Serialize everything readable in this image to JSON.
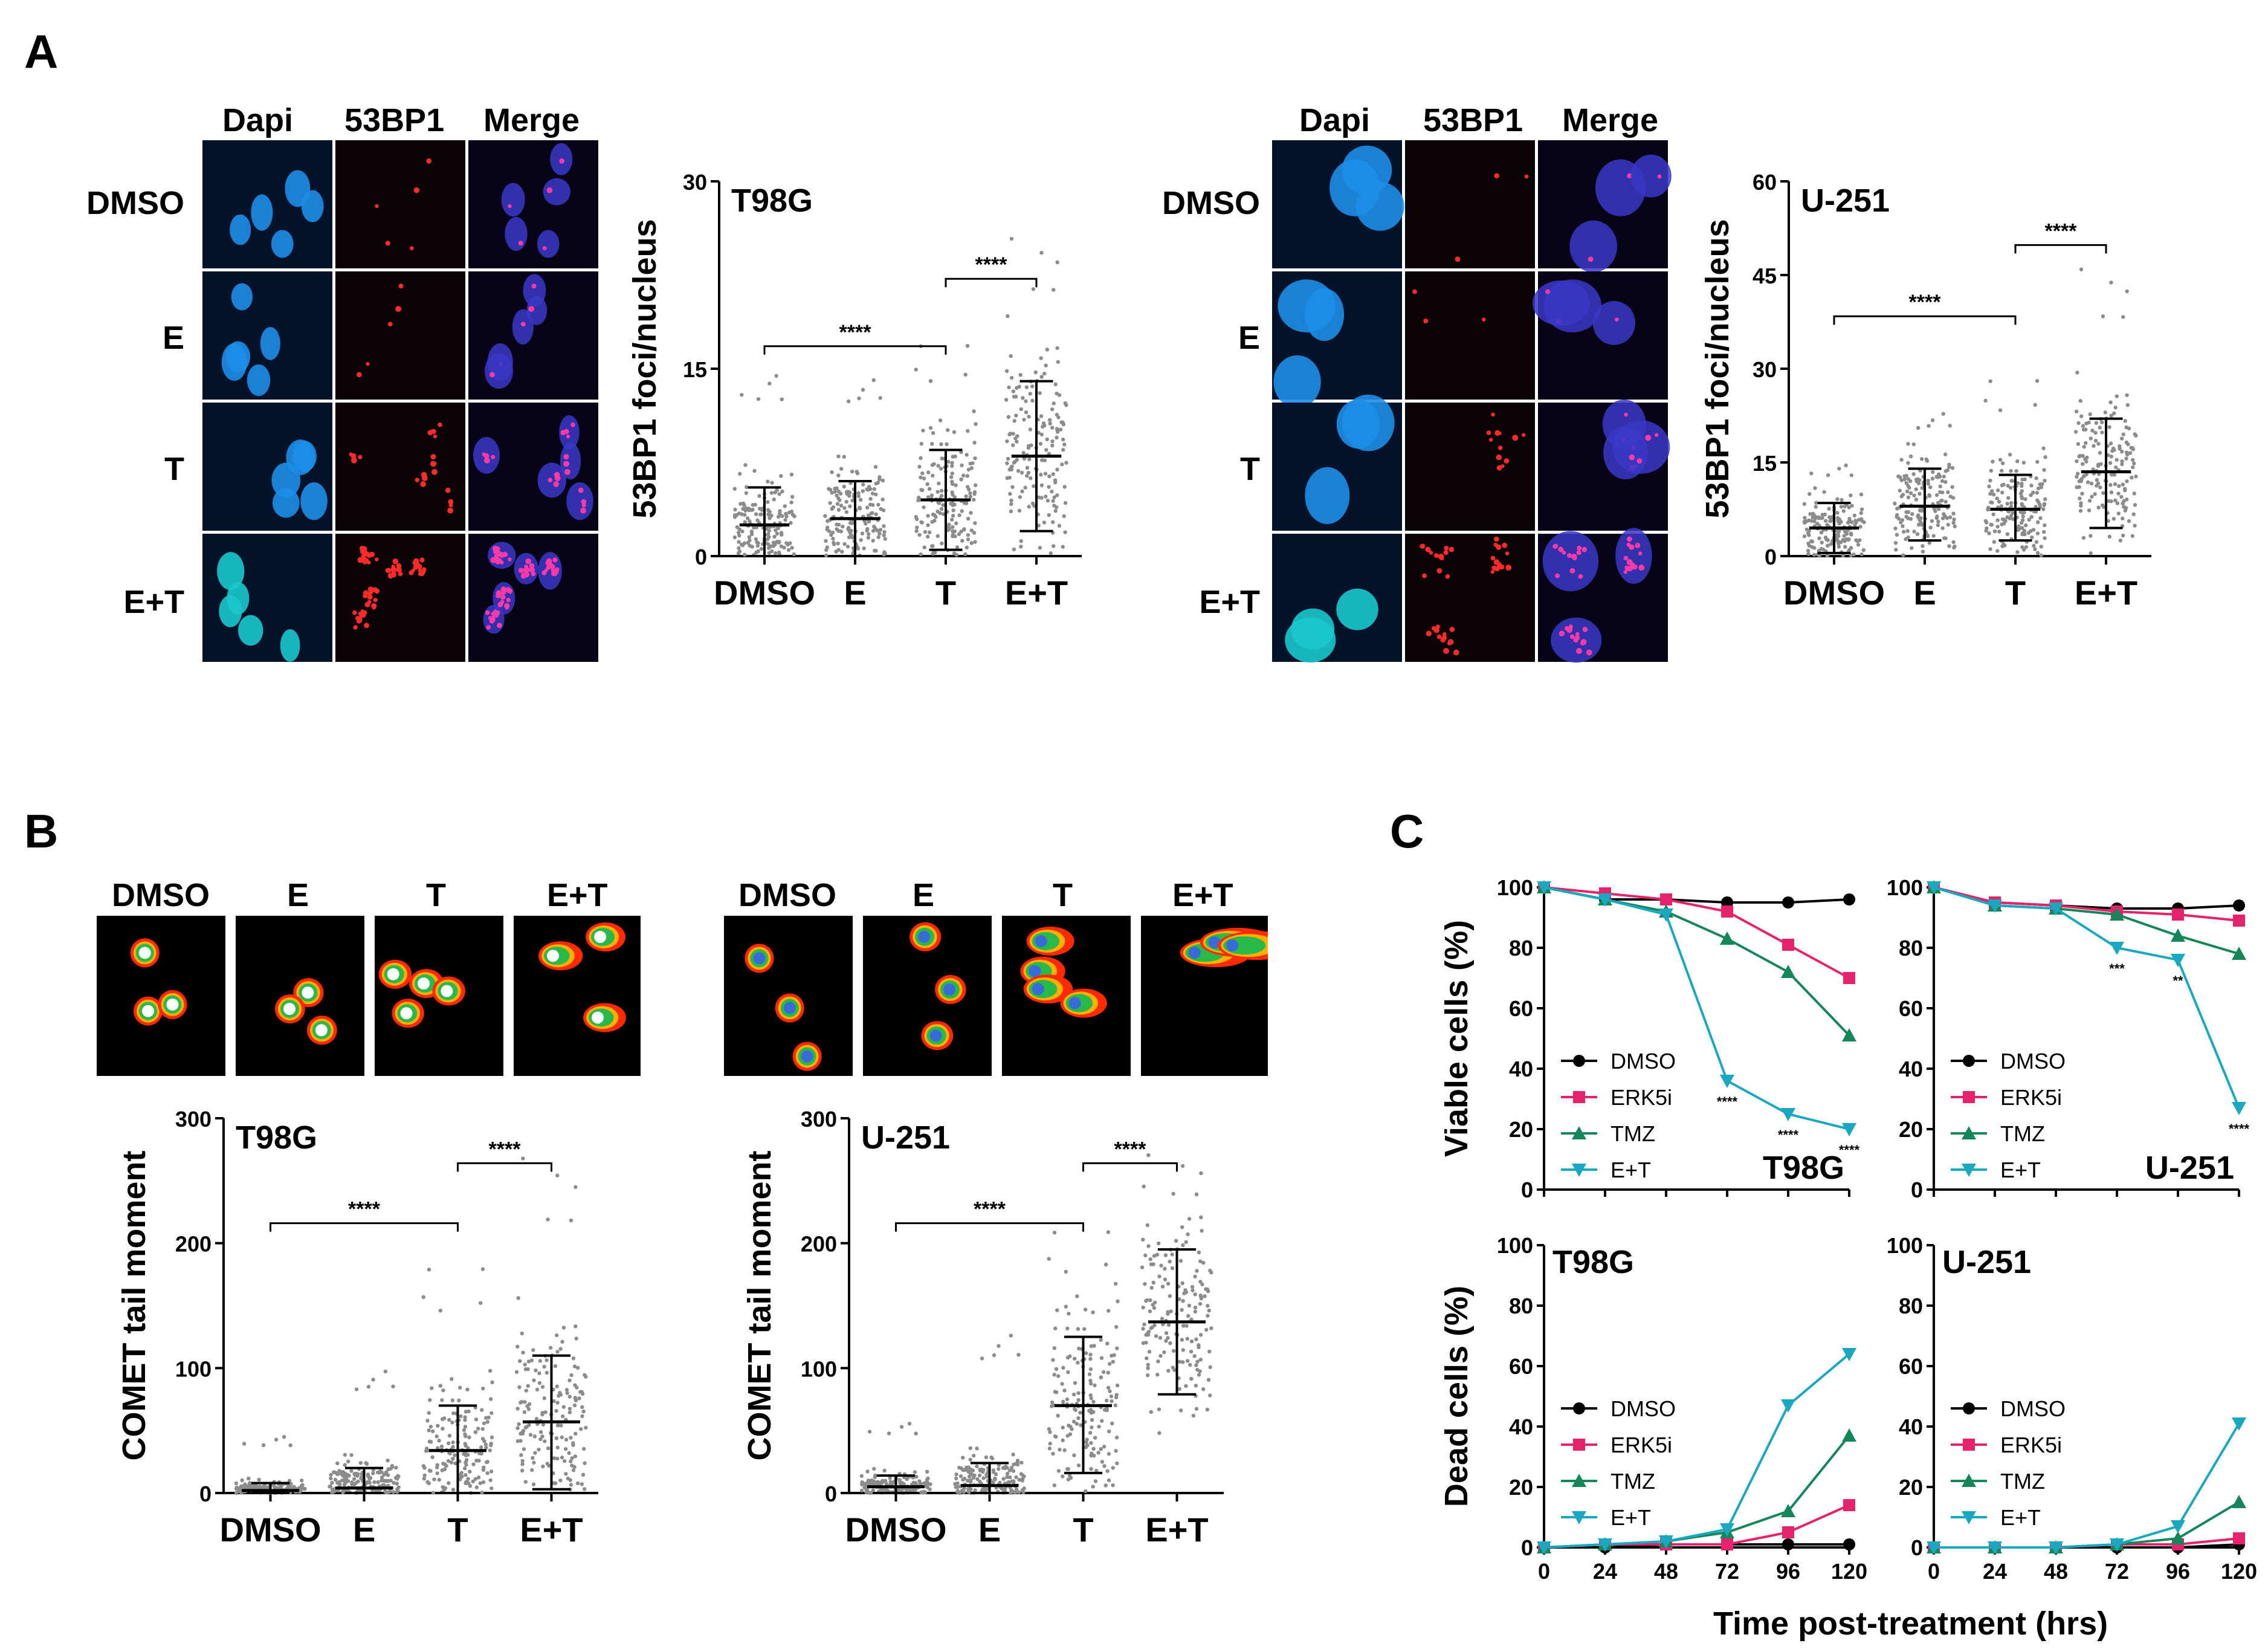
{
  "panel_letters": {
    "a": "A",
    "b": "B",
    "c": "C"
  },
  "micro_headers": {
    "dapi": "Dapi",
    "bp1": "53BP1",
    "merge": "Merge"
  },
  "micro_rows": [
    "DMSO",
    "E",
    "T",
    "E+T"
  ],
  "comet_headers": [
    "DMSO",
    "E",
    "T",
    "E+T"
  ],
  "colors": {
    "dmso": "#000000",
    "erk5i": "#e5236c",
    "tmz": "#15865a",
    "et": "#1aa8c0",
    "dots": "#8c8c8c"
  },
  "chart_data": [
    {
      "id": "a_t98g",
      "type": "scatter",
      "title": "T98G",
      "ylabel": "53BP1 foci/nucleus",
      "categories": [
        "DMSO",
        "E",
        "T",
        "E+T"
      ],
      "ylim": [
        0,
        30
      ],
      "yticks": [
        "0",
        "15",
        "30"
      ],
      "means": [
        2.5,
        3.0,
        4.5,
        8.0
      ],
      "sd_low": [
        0,
        0,
        0.5,
        2
      ],
      "sd_high": [
        5.5,
        6,
        8.5,
        14
      ],
      "max_points": [
        15,
        15,
        18,
        26
      ],
      "significance": [
        {
          "from": "DMSO",
          "to": "T",
          "label": "****"
        },
        {
          "from": "T",
          "to": "E+T",
          "label": "****"
        }
      ]
    },
    {
      "id": "a_u251",
      "type": "scatter",
      "title": "U-251",
      "ylabel": "53BP1 foci/nucleus",
      "categories": [
        "DMSO",
        "E",
        "T",
        "E+T"
      ],
      "ylim": [
        0,
        60
      ],
      "yticks": [
        "0",
        "15",
        "30",
        "45",
        "60"
      ],
      "means": [
        4.5,
        8,
        7.5,
        13.5
      ],
      "sd_low": [
        0.5,
        2.5,
        2.5,
        4.5
      ],
      "sd_high": [
        8.5,
        14,
        13,
        22
      ],
      "max_points": [
        15,
        24,
        30,
        47
      ],
      "significance": [
        {
          "from": "DMSO",
          "to": "T",
          "label": "****"
        },
        {
          "from": "T",
          "to": "E+T",
          "label": "****"
        }
      ]
    },
    {
      "id": "b_t98g",
      "type": "scatter",
      "title": "T98G",
      "ylabel": "COMET tail moment",
      "categories": [
        "DMSO",
        "E",
        "T",
        "E+T"
      ],
      "ylim": [
        0,
        300
      ],
      "yticks": [
        "0",
        "100",
        "200",
        "300"
      ],
      "means": [
        2,
        4,
        34,
        57
      ],
      "sd_low": [
        0,
        0,
        0,
        3
      ],
      "sd_high": [
        8,
        20,
        70,
        110
      ],
      "max_points": [
        47,
        105,
        193,
        275
      ],
      "significance": [
        {
          "from": "DMSO",
          "to": "T",
          "label": "****"
        },
        {
          "from": "T",
          "to": "E+T",
          "label": "****"
        }
      ]
    },
    {
      "id": "b_u251",
      "type": "scatter",
      "title": "U-251",
      "ylabel": "COMET tail moment",
      "categories": [
        "DMSO",
        "E",
        "T",
        "E+T"
      ],
      "ylim": [
        0,
        300
      ],
      "yticks": [
        "0",
        "100",
        "200",
        "300"
      ],
      "means": [
        5,
        6,
        70,
        137
      ],
      "sd_low": [
        0,
        0,
        16,
        79
      ],
      "sd_high": [
        14,
        24,
        125,
        195
      ],
      "max_points": [
        58,
        136,
        222,
        275
      ],
      "significance": [
        {
          "from": "DMSO",
          "to": "T",
          "label": "****"
        },
        {
          "from": "T",
          "to": "E+T",
          "label": "****"
        }
      ]
    },
    {
      "id": "c_viable_t98g",
      "type": "line",
      "title": "T98G",
      "ylabel": "Viable cells (%)",
      "x": [
        0,
        24,
        48,
        72,
        96,
        120
      ],
      "ylim": [
        0,
        100
      ],
      "yticks": [
        "0",
        "20",
        "40",
        "60",
        "80",
        "100"
      ],
      "series": [
        {
          "name": "DMSO",
          "values": [
            100,
            96,
            96,
            95,
            95,
            96
          ]
        },
        {
          "name": "ERK5i",
          "values": [
            100,
            98,
            96,
            92,
            81,
            70
          ]
        },
        {
          "name": "TMZ",
          "values": [
            100,
            96,
            92,
            83,
            72,
            51
          ]
        },
        {
          "name": "E+T",
          "values": [
            100,
            96,
            91,
            36,
            25,
            20
          ]
        }
      ],
      "annotations": [
        {
          "x": 72,
          "label": "****"
        },
        {
          "x": 96,
          "label": "****"
        },
        {
          "x": 120,
          "label": "****"
        }
      ]
    },
    {
      "id": "c_viable_u251",
      "type": "line",
      "title": "U-251",
      "ylabel": "",
      "x": [
        0,
        24,
        48,
        72,
        96,
        120
      ],
      "ylim": [
        0,
        100
      ],
      "yticks": [
        "0",
        "20",
        "40",
        "60",
        "80",
        "100"
      ],
      "series": [
        {
          "name": "DMSO",
          "values": [
            100,
            95,
            94,
            93,
            93,
            94
          ]
        },
        {
          "name": "ERK5i",
          "values": [
            100,
            95,
            94,
            92,
            91,
            89
          ]
        },
        {
          "name": "TMZ",
          "values": [
            100,
            94,
            93,
            91,
            84,
            78
          ]
        },
        {
          "name": "E+T",
          "values": [
            100,
            94,
            93,
            80,
            76,
            27
          ]
        }
      ],
      "annotations": [
        {
          "x": 72,
          "label": "***"
        },
        {
          "x": 96,
          "label": "**"
        },
        {
          "x": 120,
          "label": "****"
        }
      ]
    },
    {
      "id": "c_dead_t98g",
      "type": "line",
      "title": "T98G",
      "ylabel": "Dead cells (%)",
      "x": [
        0,
        24,
        48,
        72,
        96,
        120
      ],
      "ylim": [
        0,
        100
      ],
      "yticks": [
        "0",
        "20",
        "40",
        "60",
        "80",
        "100"
      ],
      "series": [
        {
          "name": "DMSO",
          "values": [
            0,
            0,
            1,
            1,
            1,
            1
          ]
        },
        {
          "name": "ERK5i",
          "values": [
            0,
            1,
            1,
            1,
            5,
            14
          ]
        },
        {
          "name": "TMZ",
          "values": [
            0,
            1,
            2,
            5,
            12,
            37
          ]
        },
        {
          "name": "E+T",
          "values": [
            0,
            1,
            2,
            6,
            47,
            64
          ]
        }
      ],
      "annotations": []
    },
    {
      "id": "c_dead_u251",
      "type": "line",
      "title": "U-251",
      "ylabel": "",
      "x": [
        0,
        24,
        48,
        72,
        96,
        120
      ],
      "ylim": [
        0,
        100
      ],
      "yticks": [
        "0",
        "20",
        "40",
        "60",
        "80",
        "100"
      ],
      "series": [
        {
          "name": "DMSO",
          "values": [
            0,
            0,
            0,
            0,
            0,
            1
          ]
        },
        {
          "name": "ERK5i",
          "values": [
            0,
            0,
            0,
            1,
            1,
            3
          ]
        },
        {
          "name": "TMZ",
          "values": [
            0,
            0,
            0,
            1,
            3,
            15
          ]
        },
        {
          "name": "E+T",
          "values": [
            0,
            0,
            0,
            1,
            7,
            41
          ]
        }
      ],
      "annotations": []
    }
  ],
  "c_xlabel": "Time post-treatment (hrs)",
  "c_xticks": [
    "0",
    "24",
    "48",
    "72",
    "96",
    "120"
  ]
}
